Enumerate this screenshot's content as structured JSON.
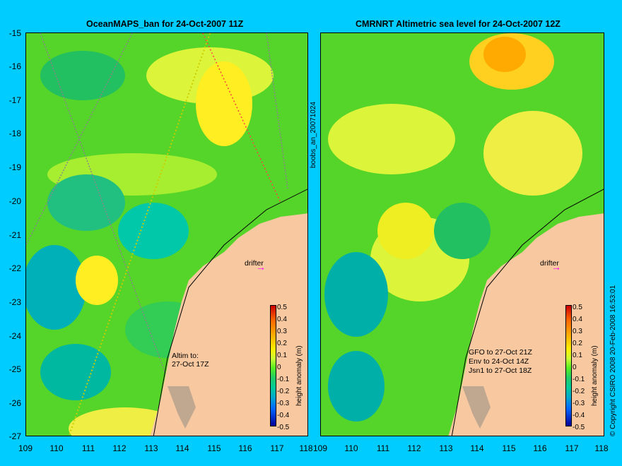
{
  "left_panel": {
    "title": "OceanMAPS_ban for 24-Oct-2007 11Z",
    "annotation_line1": "Altim to:",
    "annotation_line2": "27-Oct 17Z",
    "drifter_label": "drifter"
  },
  "right_panel": {
    "title": "CMRNRT Altimetric sea level  for 24-Oct-2007 12Z",
    "annotation_line1": "GFO to 27-Oct 21Z",
    "annotation_line2": "Env to 24-Oct 14Z",
    "annotation_line3": "Jsn1 to 27-Oct 18Z",
    "drifter_label": "drifter"
  },
  "center_vertical_label": "boobs_an_20071024",
  "right_vertical_label": "© Copyright CSIRO 2008   20-Feb-2008 16:53:01",
  "axes": {
    "y_ticks": [
      "-15",
      "-16",
      "-17",
      "-18",
      "-19",
      "-20",
      "-21",
      "-22",
      "-23",
      "-24",
      "-25",
      "-26",
      "-27"
    ],
    "x_ticks": [
      "109",
      "110",
      "111",
      "112",
      "113",
      "114",
      "115",
      "116",
      "117",
      "118"
    ]
  },
  "colorbar": {
    "label": "height anomaly (m)",
    "ticks": [
      "0.5",
      "0.4",
      "0.3",
      "0.2",
      "0.1",
      "0",
      "-0.1",
      "-0.2",
      "-0.3",
      "-0.4",
      "-0.5"
    ]
  },
  "colors": {
    "background": "#00ccff",
    "land": "#f8c8a0",
    "drifter_marker": "#ff00ff"
  }
}
